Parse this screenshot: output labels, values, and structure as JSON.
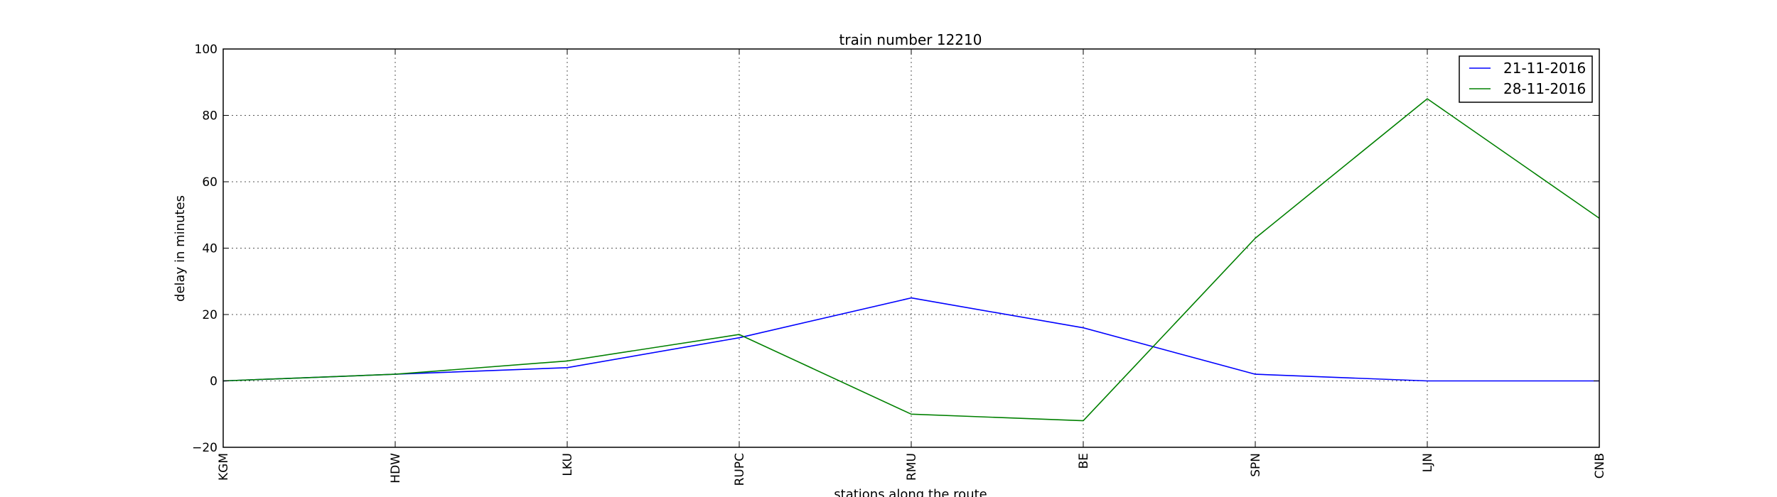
{
  "chart_data": {
    "type": "line",
    "title": "train number 12210",
    "xlabel": "stations along the route",
    "ylabel": "delay in minutes",
    "categories": [
      "KGM",
      "HDW",
      "LKU",
      "RUPC",
      "RMU",
      "BE",
      "SPN",
      "LJN",
      "CNB"
    ],
    "ylim": [
      -20,
      100
    ],
    "yticks": [
      -20,
      0,
      20,
      40,
      60,
      80,
      100
    ],
    "grid": true,
    "legend_position": "top-right",
    "series": [
      {
        "name": "21-11-2016",
        "color": "#0000ff",
        "values": [
          0,
          2,
          4,
          13,
          25,
          16,
          2,
          0,
          0
        ]
      },
      {
        "name": "28-11-2016",
        "color": "#008000",
        "values": [
          0,
          2,
          6,
          14,
          -10,
          -12,
          43,
          85,
          49
        ]
      }
    ]
  }
}
